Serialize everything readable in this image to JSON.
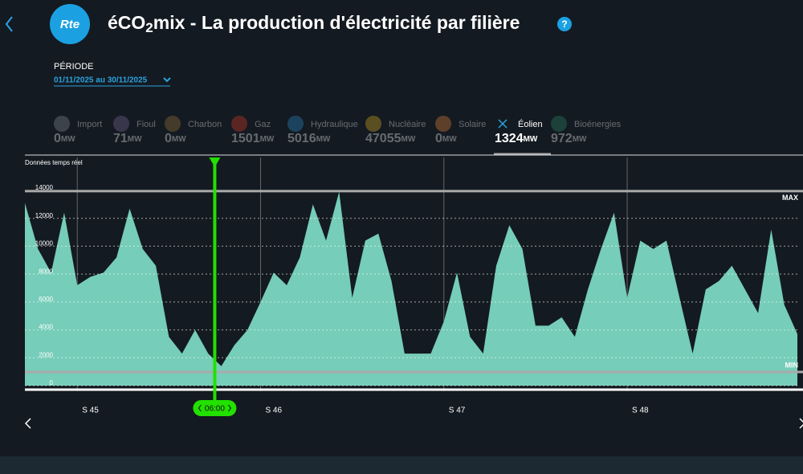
{
  "header": {
    "logo": "Rte",
    "title_start": "éCO",
    "title_sub": "2",
    "title_end": "mix - La production d'électricité par filière",
    "help": "?"
  },
  "period": {
    "label": "PÉRIODE",
    "value": "01/11/2025 au 30/11/2025"
  },
  "filieres": {
    "unit": "MW",
    "active": 7,
    "items": [
      {
        "name": "Import",
        "value": 0,
        "color": "#8a8f96"
      },
      {
        "name": "Fioul",
        "value": 71,
        "color": "#7a6a9a"
      },
      {
        "name": "Charbon",
        "value": 0,
        "color": "#a0783c"
      },
      {
        "name": "Gaz",
        "value": 1501,
        "color": "#e03b2b"
      },
      {
        "name": "Hydraulique",
        "value": 5016,
        "color": "#2b8fd0"
      },
      {
        "name": "Nucléaire",
        "value": 47055,
        "color": "#e0b020"
      },
      {
        "name": "Solaire",
        "value": 0,
        "color": "#e8863a"
      },
      {
        "name": "Éolien",
        "value": 1324,
        "color": "#7fd0c0"
      },
      {
        "name": "Bioénergies",
        "value": 972,
        "color": "#2e8a6a"
      }
    ]
  },
  "chart_data": {
    "type": "area",
    "subtitle": "Données temps réel",
    "color": "#76cdb9",
    "x": [
      0,
      0.5,
      1,
      1.5,
      2,
      2.5,
      3,
      3.5,
      4,
      4.5,
      5,
      5.5,
      6,
      6.5,
      7,
      7.5,
      8,
      8.5,
      9,
      9.5,
      10,
      10.5,
      11,
      11.5,
      12,
      12.5,
      13,
      13.5,
      14,
      14.5,
      15,
      15.5,
      16,
      16.5,
      17,
      17.5,
      18,
      18.5,
      19,
      19.5,
      20,
      20.5,
      21,
      21.5,
      22,
      22.5,
      23,
      23.5,
      24,
      24.5,
      25,
      25.5,
      26,
      26.5,
      27,
      27.5,
      28,
      28.5,
      29,
      29.5
    ],
    "values": [
      13100,
      9800,
      8100,
      12400,
      7200,
      7800,
      8100,
      9200,
      12700,
      9800,
      8600,
      3500,
      2300,
      4000,
      2300,
      1400,
      2900,
      4000,
      6000,
      8100,
      7200,
      9200,
      13000,
      10400,
      13900,
      6300,
      10400,
      10900,
      7500,
      2300,
      2300,
      2300,
      4600,
      8100,
      3500,
      2300,
      8600,
      11500,
      9800,
      4300,
      4300,
      4900,
      3500,
      6900,
      9800,
      12400,
      6300,
      10400,
      9800,
      10400,
      6300,
      2300,
      6900,
      7500,
      8600,
      6900,
      5200,
      11200,
      5800,
      3700
    ],
    "xlim": [
      0,
      29.5
    ],
    "xticks": [
      {
        "value": 2,
        "label": "S 45"
      },
      {
        "value": 9,
        "label": "S 46"
      },
      {
        "value": 16,
        "label": "S 47"
      },
      {
        "value": 23,
        "label": "S 48"
      }
    ],
    "ylim": [
      0,
      14000
    ],
    "yticks": [
      0,
      2000,
      4000,
      6000,
      8000,
      10000,
      12000,
      14000
    ],
    "grid": true,
    "max": {
      "label": "MAX",
      "value": 13950
    },
    "min": {
      "label": "MIN",
      "value": 980
    },
    "cursor": {
      "label": "06:00",
      "x": 7.25
    }
  }
}
